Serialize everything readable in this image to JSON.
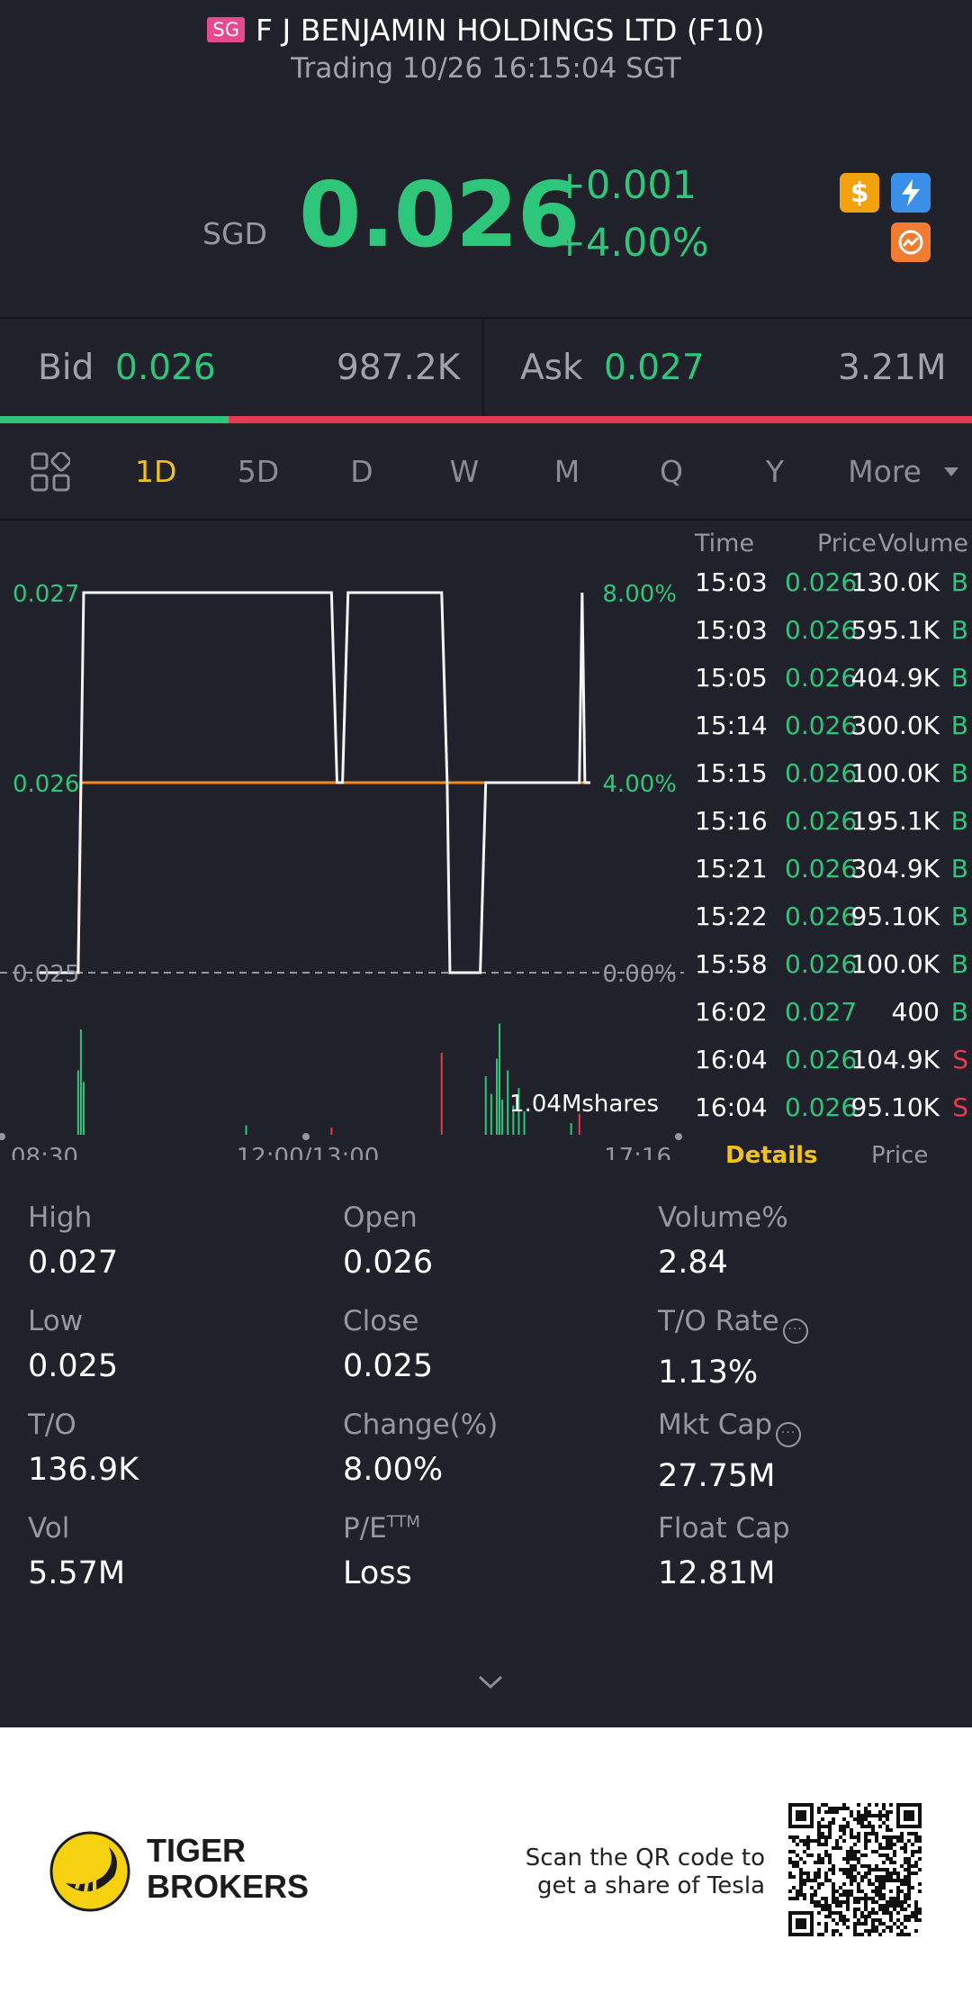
{
  "header": {
    "market_badge": "SG",
    "title": "F J BENJAMIN HOLDINGS LTD (F10)",
    "status": "Trading 10/26 16:15:04 SGT",
    "currency": "SGD",
    "price": "0.026",
    "change": "+0.001",
    "change_pct": "+4.00%",
    "icons": [
      "dollar-icon",
      "flash-icon",
      "trend-icon"
    ]
  },
  "bid_ask": {
    "bid_label": "Bid",
    "bid_price": "0.026",
    "bid_volume": "987.2K",
    "ask_label": "Ask",
    "ask_price": "0.027",
    "ask_volume": "3.21M",
    "bid_ratio": 0.235
  },
  "tabs": {
    "items": [
      "1D",
      "5D",
      "D",
      "W",
      "M",
      "Q",
      "Y"
    ],
    "active": "1D",
    "more_label": "More"
  },
  "chart_data": {
    "type": "line",
    "y_left_labels": [
      "0.027",
      "0.026",
      "0.025"
    ],
    "y_right_labels": [
      "8.00%",
      "4.00%",
      "0.00%"
    ],
    "x_labels": [
      "08:30",
      "12:00/13:00",
      "17:16"
    ],
    "ylim": [
      0.025,
      0.027
    ],
    "prev_close": 0.025,
    "avg_price": 0.026,
    "volume_label": "1.04Mshares",
    "price_series": [
      {
        "t": 0.0,
        "y": 0.025
      },
      {
        "t": 0.07,
        "y": 0.025
      },
      {
        "t": 0.08,
        "y": 0.027
      },
      {
        "t": 0.53,
        "y": 0.027
      },
      {
        "t": 0.54,
        "y": 0.026
      },
      {
        "t": 0.55,
        "y": 0.026
      },
      {
        "t": 0.56,
        "y": 0.027
      },
      {
        "t": 0.73,
        "y": 0.027
      },
      {
        "t": 0.74,
        "y": 0.026
      },
      {
        "t": 0.745,
        "y": 0.025
      },
      {
        "t": 0.8,
        "y": 0.025
      },
      {
        "t": 0.81,
        "y": 0.026
      },
      {
        "t": 0.98,
        "y": 0.026
      },
      {
        "t": 0.985,
        "y": 0.027
      },
      {
        "t": 0.99,
        "y": 0.026
      },
      {
        "t": 1.0,
        "y": 0.026
      }
    ],
    "avg_series": [
      {
        "t": 0.0,
        "y": 0.025
      },
      {
        "t": 0.07,
        "y": 0.025
      },
      {
        "t": 0.075,
        "y": 0.026
      },
      {
        "t": 1.0,
        "y": 0.026
      }
    ],
    "volume_bars": [
      {
        "t": 0.07,
        "v": 0.55,
        "c": "green"
      },
      {
        "t": 0.075,
        "v": 0.9,
        "c": "green"
      },
      {
        "t": 0.08,
        "v": 0.45,
        "c": "green"
      },
      {
        "t": 0.375,
        "v": 0.08,
        "c": "green"
      },
      {
        "t": 0.53,
        "v": 0.06,
        "c": "red"
      },
      {
        "t": 0.73,
        "v": 0.7,
        "c": "red"
      },
      {
        "t": 0.81,
        "v": 0.5,
        "c": "green"
      },
      {
        "t": 0.82,
        "v": 0.35,
        "c": "green"
      },
      {
        "t": 0.83,
        "v": 0.65,
        "c": "green"
      },
      {
        "t": 0.835,
        "v": 0.95,
        "c": "green"
      },
      {
        "t": 0.84,
        "v": 0.3,
        "c": "green"
      },
      {
        "t": 0.85,
        "v": 0.55,
        "c": "green"
      },
      {
        "t": 0.86,
        "v": 0.25,
        "c": "green"
      },
      {
        "t": 0.87,
        "v": 0.4,
        "c": "green"
      },
      {
        "t": 0.88,
        "v": 0.2,
        "c": "green"
      },
      {
        "t": 0.965,
        "v": 0.1,
        "c": "green"
      },
      {
        "t": 0.98,
        "v": 0.18,
        "c": "red"
      }
    ]
  },
  "trades": {
    "headers": {
      "time": "Time",
      "price": "Price",
      "volume": "Volume"
    },
    "rows": [
      {
        "time": "15:03",
        "price": "0.026",
        "volume": "130.0K",
        "side": "B"
      },
      {
        "time": "15:03",
        "price": "0.026",
        "volume": "595.1K",
        "side": "B"
      },
      {
        "time": "15:05",
        "price": "0.026",
        "volume": "404.9K",
        "side": "B"
      },
      {
        "time": "15:14",
        "price": "0.026",
        "volume": "300.0K",
        "side": "B"
      },
      {
        "time": "15:15",
        "price": "0.026",
        "volume": "100.0K",
        "side": "B"
      },
      {
        "time": "15:16",
        "price": "0.026",
        "volume": "195.1K",
        "side": "B"
      },
      {
        "time": "15:21",
        "price": "0.026",
        "volume": "304.9K",
        "side": "B"
      },
      {
        "time": "15:22",
        "price": "0.026",
        "volume": "95.10K",
        "side": "B"
      },
      {
        "time": "15:58",
        "price": "0.026",
        "volume": "100.0K",
        "side": "B"
      },
      {
        "time": "16:02",
        "price": "0.027",
        "volume": "400",
        "side": "B"
      },
      {
        "time": "16:04",
        "price": "0.026",
        "volume": "104.9K",
        "side": "S"
      },
      {
        "time": "16:04",
        "price": "0.026",
        "volume": "95.10K",
        "side": "S"
      }
    ],
    "tab_details": "Details",
    "tab_price": "Price"
  },
  "stats": [
    {
      "label": "High",
      "value": "0.027"
    },
    {
      "label": "Open",
      "value": "0.026"
    },
    {
      "label": "Volume%",
      "value": "2.84"
    },
    {
      "label": "Low",
      "value": "0.025"
    },
    {
      "label": "Close",
      "value": "0.025"
    },
    {
      "label": "T/O Rate",
      "value": "1.13%"
    },
    {
      "label": "T/O",
      "value": "136.9K"
    },
    {
      "label": "Change(%)",
      "value": "8.00%"
    },
    {
      "label": "Mkt Cap",
      "value": "27.75M"
    },
    {
      "label": "Vol",
      "value": "5.57M"
    },
    {
      "label": "P/E",
      "value": "Loss"
    },
    {
      "label": "Float Cap",
      "value": "12.81M"
    }
  ],
  "pe_superscript": "TTM",
  "footer": {
    "brand_line1": "TIGER",
    "brand_line2": "BROKERS",
    "scan_line1": "Scan the QR code to",
    "scan_line2": "get a share of Tesla"
  },
  "colors": {
    "up": "#2ec67a",
    "down": "#e23c4e",
    "accent": "#f1c21b",
    "background": "#20212b"
  }
}
